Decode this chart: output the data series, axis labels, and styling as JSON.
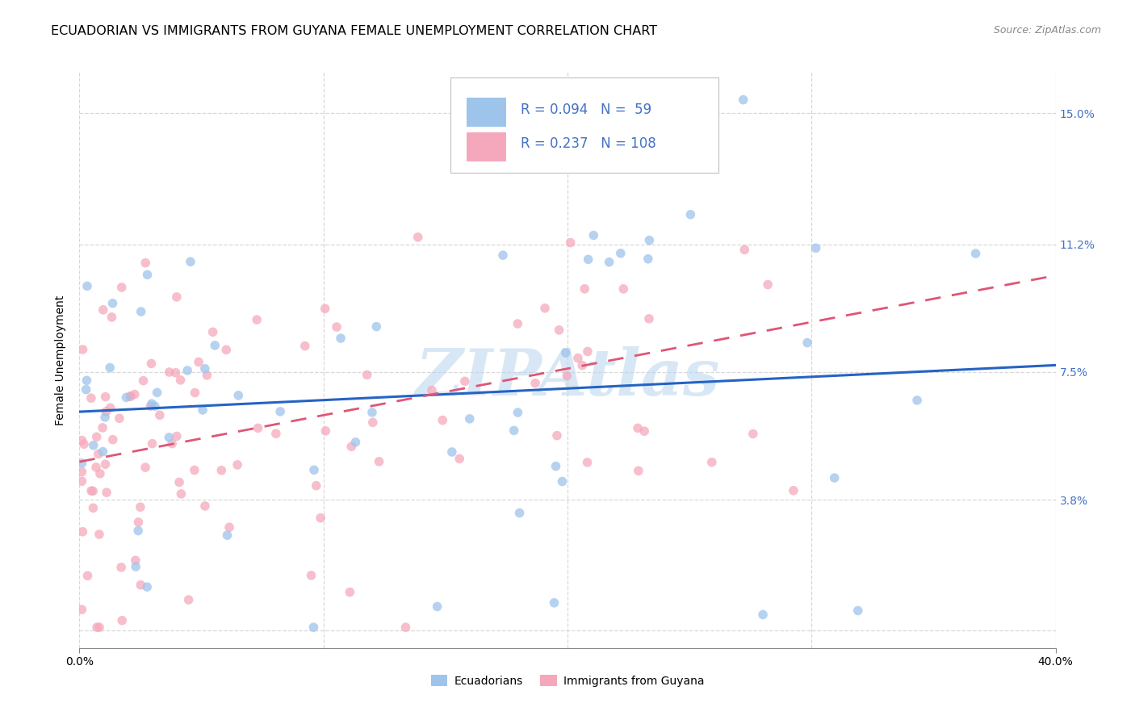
{
  "title": "ECUADORIAN VS IMMIGRANTS FROM GUYANA FEMALE UNEMPLOYMENT CORRELATION CHART",
  "source": "Source: ZipAtlas.com",
  "ylabel": "Female Unemployment",
  "x_range": [
    0.0,
    0.4
  ],
  "y_range": [
    -0.005,
    0.162
  ],
  "y_ticks": [
    0.0,
    0.038,
    0.075,
    0.112,
    0.15
  ],
  "y_tick_labels": [
    "",
    "3.8%",
    "7.5%",
    "11.2%",
    "15.0%"
  ],
  "x_ticks": [
    0.0,
    0.4
  ],
  "x_tick_labels": [
    "0.0%",
    "40.0%"
  ],
  "legend_R_blue": "0.094",
  "legend_N_blue": "59",
  "legend_R_pink": "0.237",
  "legend_N_pink": "108",
  "scatter_alpha": 0.75,
  "scatter_size": 70,
  "dot_blue_color": "#9ec4eb",
  "dot_pink_color": "#f5a8bb",
  "line_blue_color": "#2563c4",
  "line_pink_color": "#e05575",
  "blue_line_y0": 0.0635,
  "blue_line_y1": 0.077,
  "pink_line_y0": 0.049,
  "pink_line_y1": 0.103,
  "watermark_text": "ZIPAtlas",
  "watermark_color": "#b8d4ee",
  "watermark_alpha": 0.55,
  "background_color": "#ffffff",
  "grid_color": "#d8d8d8",
  "right_axis_color": "#4472c4",
  "title_fontsize": 11.5,
  "source_fontsize": 9,
  "axis_label_fontsize": 10,
  "tick_fontsize": 10,
  "legend_fontsize": 12
}
